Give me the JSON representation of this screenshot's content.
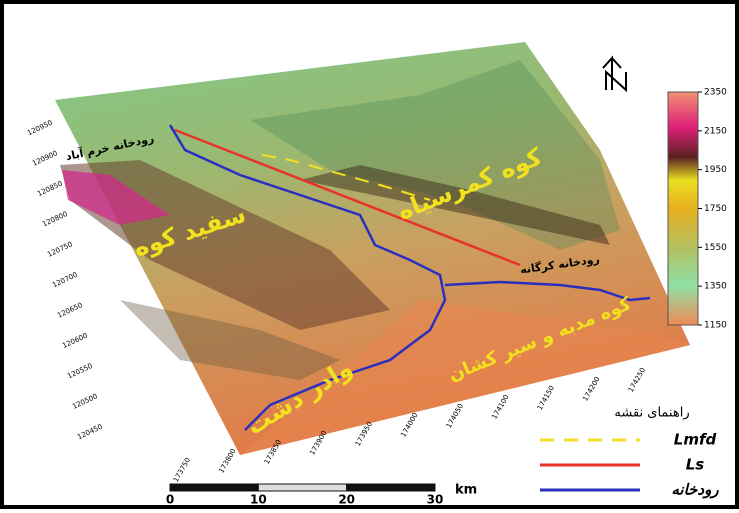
{
  "map": {
    "labels": [
      "رودخانه خرم آباد",
      "کوه کمرسیاه",
      "سفید کوه",
      "رودخانه کرگانه",
      "کوه مدبه و سیر کشان",
      "وادر دشت"
    ]
  },
  "colorbar": {
    "range": [
      1150,
      2350
    ],
    "ticks": [
      2350,
      2150,
      1950,
      1750,
      1550,
      1350,
      1150
    ]
  },
  "northing_ticks": [
    120950,
    120900,
    120850,
    120800,
    120750,
    120700,
    120650,
    120600,
    120550,
    120500,
    120450
  ],
  "easting_ticks": [
    173750,
    173800,
    173850,
    173900,
    173950,
    174000,
    174050,
    174100,
    174150,
    174200,
    174250
  ],
  "scale_bar": {
    "ticks": [
      0,
      10,
      20,
      30
    ],
    "unit": "km"
  },
  "legend": {
    "title": "راهنمای نقشه",
    "items": [
      {
        "label": "Lmfd",
        "color": "#f2e21e",
        "dash": true
      },
      {
        "label": "Ls",
        "color": "#e8322a",
        "dash": false
      },
      {
        "label": "رودخانه",
        "color": "#2b2fc0",
        "dash": false
      }
    ]
  }
}
